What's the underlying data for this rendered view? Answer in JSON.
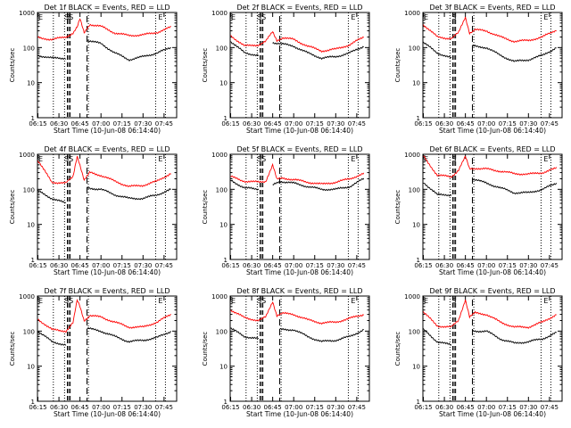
{
  "chart_data": [
    {
      "type": "line",
      "title": "Det 1f BLACK = Events, RED = LLD",
      "xlabel": "Start Time (10-Jun-08 06:14:40)",
      "ylabel": "Counts/sec",
      "x_ticks": [
        "06:15",
        "06:30",
        "06:45",
        "07:00",
        "07:15",
        "07:30",
        "07:45"
      ],
      "y_ticks": [
        "1",
        "10",
        "100",
        "1000"
      ],
      "y_scale": "log",
      "ylim": [
        1,
        1000
      ],
      "xlim_minutes": [
        "06:14:40",
        "07:54"
      ],
      "markers": [
        "E",
        "S",
        "SS",
        "E"
      ],
      "series": [
        {
          "color": "#ff0000",
          "x": [
            "06:15",
            "06:25",
            "06:35",
            "06:40",
            "06:43",
            "06:45",
            "06:48",
            "06:52",
            "07:00",
            "07:10",
            "07:20",
            "07:30",
            "07:40",
            "07:50"
          ],
          "y": [
            190,
            170,
            200,
            260,
            380,
            650,
            260,
            460,
            400,
            260,
            220,
            230,
            270,
            380
          ]
        },
        {
          "color": "#000000",
          "x": [
            "06:15",
            "06:25",
            "06:35",
            "06:40",
            "06:50",
            "07:00",
            "07:10",
            "07:20",
            "07:30",
            "07:40",
            "07:50"
          ],
          "y": [
            60,
            50,
            50,
            null,
            160,
            130,
            70,
            45,
            55,
            70,
            100
          ]
        }
      ]
    },
    {
      "type": "line",
      "title": "Det 2f BLACK = Events, RED = LLD",
      "xlabel": "Start Time (10-Jun-08 06:14:40)",
      "ylabel": "Counts/sec",
      "x_ticks": [
        "06:15",
        "06:30",
        "06:45",
        "07:00",
        "07:15",
        "07:30",
        "07:45"
      ],
      "y_ticks": [
        "1",
        "10",
        "100",
        "1000"
      ],
      "y_scale": "log",
      "ylim": [
        1,
        1000
      ],
      "markers": [
        "E",
        "SS",
        "E"
      ],
      "series": [
        {
          "color": "#ff0000",
          "x": [
            "06:15",
            "06:25",
            "06:35",
            "06:40",
            "06:45",
            "06:48",
            "06:52",
            "07:00",
            "07:10",
            "07:20",
            "07:30",
            "07:40",
            "07:50"
          ],
          "y": [
            220,
            110,
            120,
            150,
            280,
            160,
            190,
            170,
            110,
            80,
            90,
            120,
            200
          ]
        },
        {
          "color": "#000000",
          "x": [
            "06:15",
            "06:25",
            "06:35",
            "06:40",
            "06:45",
            "06:50",
            "07:00",
            "07:10",
            "07:20",
            "07:30",
            "07:40",
            "07:50"
          ],
          "y": [
            150,
            70,
            60,
            null,
            140,
            130,
            110,
            70,
            50,
            55,
            70,
            110
          ]
        }
      ]
    },
    {
      "type": "line",
      "title": "Det 3f BLACK = Events, RED = LLD",
      "xlabel": "Start Time (10-Jun-08 06:14:40)",
      "ylabel": "Counts/sec",
      "x_ticks": [
        "06:15",
        "06:30",
        "06:45",
        "07:00",
        "07:15",
        "07:30",
        "07:45"
      ],
      "y_ticks": [
        "1",
        "10",
        "100",
        "1000"
      ],
      "y_scale": "log",
      "ylim": [
        1,
        1000
      ],
      "markers": [
        "E",
        "S",
        "E"
      ],
      "series": [
        {
          "color": "#ff0000",
          "x": [
            "06:15",
            "06:25",
            "06:35",
            "06:40",
            "06:45",
            "06:48",
            "06:52",
            "07:00",
            "07:10",
            "07:20",
            "07:30",
            "07:40",
            "07:50"
          ],
          "y": [
            450,
            200,
            180,
            260,
            750,
            260,
            320,
            300,
            200,
            150,
            160,
            200,
            320
          ]
        },
        {
          "color": "#000000",
          "x": [
            "06:15",
            "06:25",
            "06:35",
            "06:40",
            "06:50",
            "07:00",
            "07:10",
            "07:20",
            "07:30",
            "07:40",
            "07:50"
          ],
          "y": [
            140,
            70,
            50,
            null,
            110,
            100,
            60,
            40,
            45,
            60,
            100
          ]
        }
      ]
    },
    {
      "type": "line",
      "title": "Det 4f BLACK = Events, RED = LLD",
      "xlabel": "Start Time (10-Jun-08 06:14:40)",
      "ylabel": "Counts/sec",
      "x_ticks": [
        "06:15",
        "06:30",
        "06:45",
        "07:00",
        "07:15",
        "07:30",
        "07:45"
      ],
      "y_ticks": [
        "1",
        "10",
        "100",
        "1000"
      ],
      "y_scale": "log",
      "ylim": [
        1,
        1000
      ],
      "markers": [
        "E",
        "SS",
        "E"
      ],
      "series": [
        {
          "color": "#ff0000",
          "x": [
            "06:15",
            "06:25",
            "06:35",
            "06:40",
            "06:43",
            "06:45",
            "06:48",
            "06:52",
            "07:00",
            "07:10",
            "07:20",
            "07:30",
            "07:40",
            "07:50"
          ],
          "y": [
            650,
            160,
            150,
            230,
            900,
            500,
            180,
            300,
            250,
            170,
            120,
            130,
            170,
            290
          ]
        },
        {
          "color": "#000000",
          "x": [
            "06:15",
            "06:25",
            "06:35",
            "06:40",
            "06:50",
            "07:00",
            "07:10",
            "07:20",
            "07:30",
            "07:40",
            "07:50"
          ],
          "y": [
            90,
            55,
            40,
            null,
            110,
            100,
            70,
            55,
            55,
            70,
            100
          ]
        }
      ]
    },
    {
      "type": "line",
      "title": "Det 5f BLACK = Events, RED = LLD",
      "xlabel": "Start Time (10-Jun-08 06:14:40)",
      "ylabel": "Counts/sec",
      "x_ticks": [
        "06:15",
        "06:30",
        "06:45",
        "07:00",
        "07:15",
        "07:30",
        "07:45"
      ],
      "y_ticks": [
        "1",
        "10",
        "100",
        "1000"
      ],
      "y_scale": "log",
      "ylim": [
        1,
        1000
      ],
      "markers": [
        "SS",
        "E"
      ],
      "series": [
        {
          "color": "#ff0000",
          "x": [
            "06:15",
            "06:25",
            "06:35",
            "06:40",
            "06:45",
            "06:48",
            "06:52",
            "07:00",
            "07:10",
            "07:20",
            "07:30",
            "07:40",
            "07:50"
          ],
          "y": [
            230,
            170,
            160,
            170,
            500,
            190,
            210,
            190,
            160,
            140,
            160,
            200,
            280
          ]
        },
        {
          "color": "#000000",
          "x": [
            "06:15",
            "06:25",
            "06:35",
            "06:40",
            "06:45",
            "06:50",
            "07:00",
            "07:10",
            "07:20",
            "07:30",
            "07:40",
            "07:50"
          ],
          "y": [
            180,
            110,
            100,
            null,
            130,
            170,
            150,
            120,
            100,
            100,
            120,
            200
          ]
        }
      ]
    },
    {
      "type": "line",
      "title": "Det 6f BLACK = Events, RED = LLD",
      "xlabel": "Start Time (10-Jun-08 06:14:40)",
      "ylabel": "Counts/sec",
      "x_ticks": [
        "06:15",
        "06:30",
        "06:45",
        "07:00",
        "07:15",
        "07:30",
        "07:45"
      ],
      "y_ticks": [
        "1",
        "10",
        "100",
        "1000"
      ],
      "y_scale": "log",
      "ylim": [
        1,
        1000
      ],
      "markers": [
        "E",
        "S",
        "E"
      ],
      "series": [
        {
          "color": "#ff0000",
          "x": [
            "06:15",
            "06:25",
            "06:35",
            "06:40",
            "06:45",
            "06:48",
            "06:52",
            "07:00",
            "07:10",
            "07:20",
            "07:30",
            "07:40",
            "07:50"
          ],
          "y": [
            900,
            250,
            230,
            350,
            850,
            380,
            400,
            380,
            330,
            280,
            270,
            300,
            400
          ]
        },
        {
          "color": "#000000",
          "x": [
            "06:15",
            "06:25",
            "06:35",
            "06:40",
            "06:50",
            "07:00",
            "07:10",
            "07:20",
            "07:30",
            "07:40",
            "07:50"
          ],
          "y": [
            160,
            70,
            70,
            null,
            200,
            150,
            110,
            80,
            80,
            100,
            150
          ]
        }
      ]
    },
    {
      "type": "line",
      "title": "Det 7f BLACK = Events, RED = LLD",
      "xlabel": "Start Time (10-Jun-08 06:14:40)",
      "ylabel": "Counts/sec",
      "x_ticks": [
        "06:15",
        "06:30",
        "06:45",
        "07:00",
        "07:15",
        "07:30",
        "07:45"
      ],
      "y_ticks": [
        "1",
        "10",
        "100",
        "1000"
      ],
      "y_scale": "log",
      "ylim": [
        1,
        1000
      ],
      "markers": [
        "E",
        "SS",
        "E"
      ],
      "series": [
        {
          "color": "#ff0000",
          "x": [
            "06:15",
            "06:25",
            "06:35",
            "06:40",
            "06:43",
            "06:45",
            "06:48",
            "06:52",
            "07:00",
            "07:10",
            "07:20",
            "07:30",
            "07:40",
            "07:50"
          ],
          "y": [
            220,
            110,
            100,
            170,
            750,
            500,
            200,
            280,
            250,
            180,
            130,
            130,
            180,
            300
          ]
        },
        {
          "color": "#000000",
          "x": [
            "06:15",
            "06:25",
            "06:35",
            "06:40",
            "06:50",
            "07:00",
            "07:10",
            "07:20",
            "07:30",
            "07:40",
            "07:50"
          ],
          "y": [
            100,
            50,
            40,
            null,
            120,
            100,
            70,
            50,
            55,
            65,
            100
          ]
        }
      ]
    },
    {
      "type": "line",
      "title": "Det 8f BLACK = Events, RED = LLD",
      "xlabel": "Start Time (10-Jun-08 06:14:40)",
      "ylabel": "Counts/sec",
      "x_ticks": [
        "06:15",
        "06:30",
        "06:45",
        "07:00",
        "07:15",
        "07:30",
        "07:45"
      ],
      "y_ticks": [
        "1",
        "10",
        "100",
        "1000"
      ],
      "y_scale": "log",
      "ylim": [
        1,
        1000
      ],
      "markers": [
        "E",
        "SS",
        "E"
      ],
      "series": [
        {
          "color": "#ff0000",
          "x": [
            "06:15",
            "06:25",
            "06:35",
            "06:40",
            "06:45",
            "06:48",
            "06:52",
            "07:00",
            "07:10",
            "07:20",
            "07:30",
            "07:40",
            "07:50"
          ],
          "y": [
            400,
            240,
            200,
            250,
            700,
            280,
            320,
            300,
            210,
            170,
            180,
            230,
            300
          ]
        },
        {
          "color": "#000000",
          "x": [
            "06:15",
            "06:25",
            "06:35",
            "06:40",
            "06:50",
            "07:00",
            "07:10",
            "07:20",
            "07:30",
            "07:40",
            "07:50"
          ],
          "y": [
            120,
            70,
            60,
            null,
            110,
            110,
            70,
            50,
            55,
            70,
            110
          ]
        }
      ]
    },
    {
      "type": "line",
      "title": "Det 9f BLACK = Events, RED = LLD",
      "xlabel": "Start Time (10-Jun-08 06:14:40)",
      "ylabel": "Counts/sec",
      "x_ticks": [
        "06:15",
        "06:30",
        "06:45",
        "07:00",
        "07:15",
        "07:30",
        "07:45"
      ],
      "y_ticks": [
        "1",
        "10",
        "100",
        "1000"
      ],
      "y_scale": "log",
      "ylim": [
        1,
        1000
      ],
      "markers": [
        "E",
        "S",
        "E"
      ],
      "series": [
        {
          "color": "#ff0000",
          "x": [
            "06:15",
            "06:25",
            "06:35",
            "06:40",
            "06:45",
            "06:48",
            "06:52",
            "07:00",
            "07:10",
            "07:20",
            "07:30",
            "07:40",
            "07:50"
          ],
          "y": [
            350,
            140,
            130,
            200,
            800,
            250,
            330,
            300,
            180,
            130,
            130,
            180,
            300
          ]
        },
        {
          "color": "#000000",
          "x": [
            "06:15",
            "06:25",
            "06:35",
            "06:40",
            "06:50",
            "07:00",
            "07:10",
            "07:20",
            "07:30",
            "07:40",
            "07:50"
          ],
          "y": [
            110,
            50,
            40,
            null,
            100,
            100,
            60,
            45,
            50,
            60,
            90
          ]
        }
      ]
    }
  ]
}
